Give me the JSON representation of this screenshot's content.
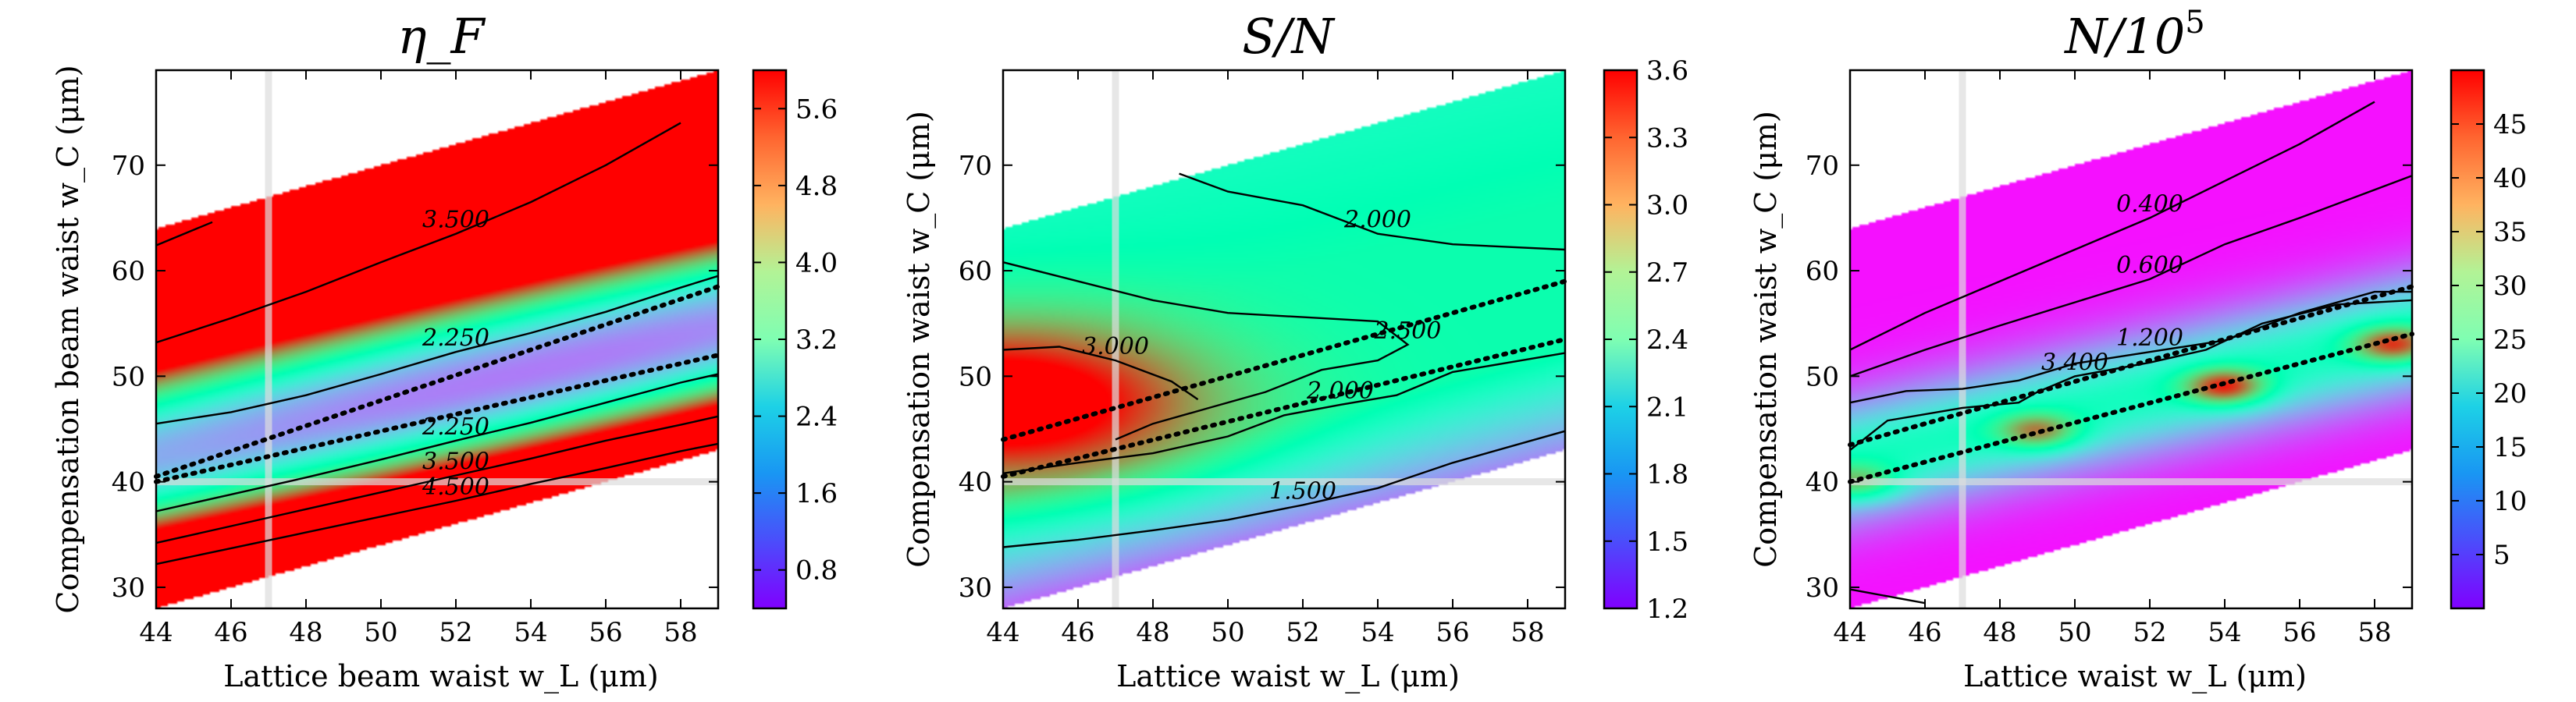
{
  "chart_data": [
    {
      "type": "heatmap",
      "title": "η_F",
      "xlabel": "Lattice beam waist w_L (μm)",
      "ylabel": "Compensation beam waist w_C (μm)",
      "xlim": [
        44,
        59
      ],
      "ylim": [
        28,
        79
      ],
      "xticks": [
        "44",
        "46",
        "48",
        "50",
        "52",
        "54",
        "56",
        "58"
      ],
      "yticks": [
        "30",
        "40",
        "50",
        "60",
        "70"
      ],
      "colorbar": {
        "min": 0.4,
        "max": 6.0,
        "ticks": [
          "0.8",
          "1.6",
          "2.4",
          "3.2",
          "4.0",
          "4.8",
          "5.6"
        ]
      },
      "colormap": "rainbow",
      "region": {
        "lower_left_y": 28,
        "lower_slope": 1.0,
        "upper_left_y": 64,
        "upper_slope": 1.0
      },
      "field": {
        "center_slope": 0.8,
        "center_offset": 40.5,
        "min_value": 0.6,
        "min_at_x": 54,
        "sigma": 9,
        "growth": 0.12
      },
      "contours": [
        {
          "label": "3.500",
          "points": [
            [
              44,
              53.2
            ],
            [
              46,
              55.5
            ],
            [
              48,
              58
            ],
            [
              50,
              60.8
            ],
            [
              52,
              63.5
            ],
            [
              54,
              66.5
            ],
            [
              56,
              70
            ],
            [
              58,
              74
            ]
          ]
        },
        {
          "label": "2.250",
          "points": [
            [
              44,
              45.5
            ],
            [
              46,
              46.6
            ],
            [
              48,
              48.2
            ],
            [
              50,
              50.2
            ],
            [
              52,
              52.3
            ],
            [
              54,
              54.1
            ],
            [
              56,
              56.1
            ],
            [
              58,
              58.4
            ],
            [
              59,
              59.5
            ]
          ]
        },
        {
          "label": "2.250",
          "points": [
            [
              44,
              37.2
            ],
            [
              46,
              38.8
            ],
            [
              48,
              40.4
            ],
            [
              50,
              42.1
            ],
            [
              52,
              43.9
            ],
            [
              54,
              45.6
            ],
            [
              56,
              47.5
            ],
            [
              58,
              49.4
            ],
            [
              59,
              50.2
            ]
          ]
        },
        {
          "label": "3.500",
          "points": [
            [
              44,
              34.2
            ],
            [
              46,
              35.8
            ],
            [
              48,
              37.4
            ],
            [
              50,
              39.0
            ],
            [
              52,
              40.6
            ],
            [
              54,
              42.2
            ],
            [
              56,
              43.9
            ],
            [
              58,
              45.4
            ],
            [
              59,
              46.2
            ]
          ]
        },
        {
          "label": "4.500",
          "points": [
            [
              44,
              32.2
            ],
            [
              46,
              33.7
            ],
            [
              48,
              35.2
            ],
            [
              50,
              36.7
            ],
            [
              52,
              38.2
            ],
            [
              54,
              39.8
            ],
            [
              56,
              41.3
            ],
            [
              58,
              42.9
            ],
            [
              59,
              43.6
            ]
          ]
        },
        {
          "label": "",
          "points": [
            [
              44,
              62.4
            ],
            [
              45.5,
              64.6
            ]
          ]
        }
      ],
      "dotted_lines": [
        [
          [
            44,
            40
          ],
          [
            59,
            52
          ]
        ],
        [
          [
            44,
            40.5
          ],
          [
            59,
            58.5
          ]
        ]
      ]
    },
    {
      "type": "heatmap",
      "title": "S/N",
      "xlabel": "Lattice waist w_L (μm)",
      "ylabel": "Compensation waist w_C (μm)",
      "xlim": [
        44,
        59
      ],
      "ylim": [
        28,
        79
      ],
      "xticks": [
        "44",
        "46",
        "48",
        "50",
        "52",
        "54",
        "56",
        "58"
      ],
      "yticks": [
        "30",
        "40",
        "50",
        "60",
        "70"
      ],
      "colorbar": {
        "min": 1.2,
        "max": 3.6,
        "ticks": [
          "1.2",
          "1.5",
          "1.8",
          "2.1",
          "2.4",
          "2.7",
          "3.0",
          "3.3",
          "3.6"
        ]
      },
      "colormap": "rainbow",
      "region": {
        "lower_left_y": 28,
        "lower_slope": 1.0,
        "upper_left_y": 64,
        "upper_slope": 1.0
      },
      "field": {
        "peak_value": 3.6,
        "peak_x": 44,
        "peak_y": 47.5,
        "base_value": 2.1,
        "bottom_value": 1.2
      },
      "contours": [
        {
          "label": "3.000",
          "points": [
            [
              44,
              52.5
            ],
            [
              45.5,
              52.8
            ],
            [
              47,
              51.5
            ],
            [
              48.5,
              49.5
            ],
            [
              49.2,
              47.8
            ]
          ]
        },
        {
          "label": "2.500",
          "points": [
            [
              44,
              60.8
            ],
            [
              46,
              59
            ],
            [
              48,
              57.2
            ],
            [
              50,
              56
            ],
            [
              52,
              55.6
            ],
            [
              54,
              55.2
            ],
            [
              54.8,
              53
            ],
            [
              54,
              51.5
            ],
            [
              52.5,
              50.6
            ],
            [
              51,
              48.5
            ],
            [
              49.5,
              47
            ],
            [
              48,
              45.5
            ],
            [
              47,
              44
            ]
          ]
        },
        {
          "label": "2.000",
          "points": [
            [
              44,
              40.8
            ],
            [
              46,
              41.8
            ],
            [
              48,
              42.7
            ],
            [
              50,
              44.3
            ],
            [
              51.5,
              46.3
            ],
            [
              53,
              47.3
            ],
            [
              54.5,
              48.2
            ],
            [
              56,
              50.4
            ],
            [
              58,
              51.6
            ],
            [
              59,
              52.2
            ]
          ]
        },
        {
          "label": "2.000",
          "points": [
            [
              48.7,
              69.2
            ],
            [
              50,
              67.5
            ],
            [
              52,
              66.2
            ],
            [
              54,
              63.5
            ],
            [
              56,
              62.5
            ],
            [
              59,
              62
            ]
          ]
        },
        {
          "label": "1.500",
          "points": [
            [
              44,
              33.8
            ],
            [
              46,
              34.5
            ],
            [
              48,
              35.4
            ],
            [
              50,
              36.4
            ],
            [
              52,
              37.8
            ],
            [
              54,
              39.4
            ],
            [
              56,
              41.8
            ],
            [
              58,
              43.8
            ],
            [
              59,
              44.8
            ]
          ]
        }
      ],
      "dotted_lines": [
        [
          [
            44,
            40.5
          ],
          [
            59,
            53.5
          ]
        ],
        [
          [
            44,
            44
          ],
          [
            59,
            59
          ]
        ]
      ]
    },
    {
      "type": "heatmap",
      "title": "N/10^5",
      "xlabel": "Lattice waist w_L (μm)",
      "ylabel": "Compensation waist w_C (μm)",
      "xlim": [
        44,
        59
      ],
      "ylim": [
        28,
        79
      ],
      "xticks": [
        "44",
        "46",
        "48",
        "50",
        "52",
        "54",
        "56",
        "58"
      ],
      "yticks": [
        "30",
        "40",
        "50",
        "60",
        "70"
      ],
      "colorbar": {
        "min": 0,
        "max": 50,
        "ticks": [
          "5",
          "10",
          "15",
          "20",
          "25",
          "30",
          "35",
          "40",
          "45"
        ]
      },
      "colormap": "rainbow",
      "region": {
        "lower_left_y": 28,
        "lower_slope": 1.0,
        "upper_left_y": 64,
        "upper_slope": 1.0
      },
      "field": {
        "base_value": 1,
        "band": {
          "y_at_44": 42,
          "y_at_59": 54,
          "peak": 22,
          "width": 4
        },
        "spots": [
          {
            "x": 44.2,
            "y": 40,
            "value": 38
          },
          {
            "x": 49,
            "y": 44.8,
            "value": 42
          },
          {
            "x": 54,
            "y": 49,
            "value": 48
          },
          {
            "x": 58.5,
            "y": 53,
            "value": 46
          }
        ]
      },
      "contours": [
        {
          "label": "0.400",
          "points": [
            [
              44,
              52.5
            ],
            [
              46,
              56
            ],
            [
              48,
              59
            ],
            [
              50,
              62
            ],
            [
              52,
              65
            ],
            [
              54,
              68.5
            ],
            [
              56,
              72
            ],
            [
              58,
              76
            ]
          ]
        },
        {
          "label": "0.600",
          "points": [
            [
              44,
              50
            ],
            [
              46,
              52.5
            ],
            [
              48,
              54.8
            ],
            [
              50,
              57
            ],
            [
              52,
              59.2
            ],
            [
              54,
              62.5
            ],
            [
              56,
              65
            ],
            [
              59,
              69
            ]
          ]
        },
        {
          "label": "1.200",
          "points": [
            [
              44,
              47.5
            ],
            [
              45.5,
              48.6
            ],
            [
              47,
              48.8
            ],
            [
              48.5,
              49.6
            ],
            [
              50,
              51.2
            ],
            [
              52,
              52.3
            ],
            [
              54,
              53.4
            ],
            [
              56,
              56
            ],
            [
              58,
              58
            ],
            [
              59,
              58
            ]
          ]
        },
        {
          "label": "3.400",
          "points": [
            [
              44,
              43
            ],
            [
              45,
              45.8
            ],
            [
              47,
              47
            ],
            [
              48.5,
              47.5
            ],
            [
              49,
              48.5
            ],
            [
              50,
              50
            ],
            [
              52,
              51.3
            ],
            [
              53.5,
              52.5
            ],
            [
              55,
              55
            ],
            [
              57,
              56.8
            ],
            [
              59,
              57.2
            ]
          ]
        },
        {
          "label": "",
          "points": [
            [
              44,
              29.8
            ],
            [
              46,
              28.5
            ]
          ]
        }
      ],
      "dotted_lines": [
        [
          [
            44,
            40
          ],
          [
            59,
            54
          ]
        ],
        [
          [
            44,
            43.5
          ],
          [
            59,
            58.5
          ]
        ]
      ]
    }
  ]
}
